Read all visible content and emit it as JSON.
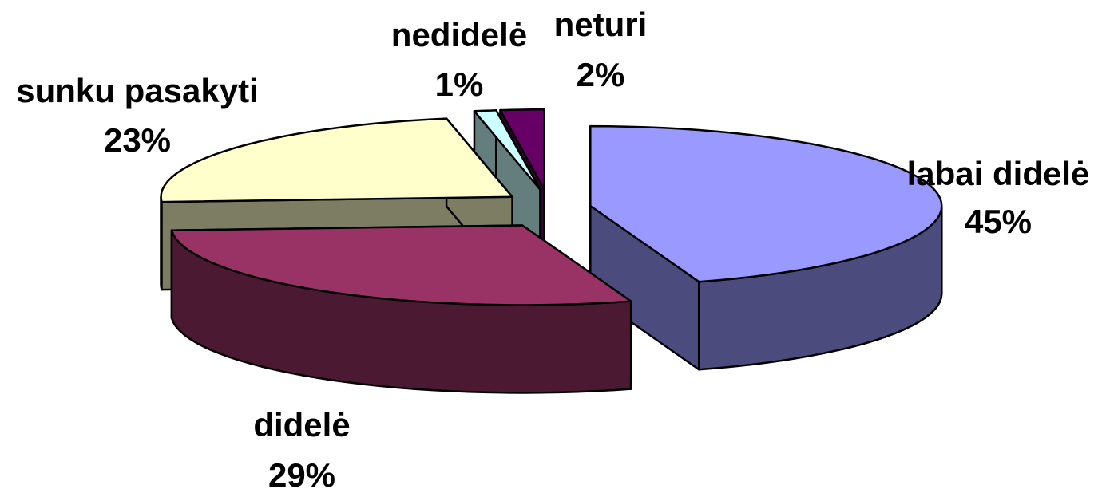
{
  "chart_data": {
    "type": "pie",
    "title": "",
    "three_d": true,
    "exploded": true,
    "legend": "none",
    "slices": [
      {
        "label": "labai didelė",
        "value": 45,
        "pct_text": "45%",
        "color": "#9999FF",
        "side_color": "#4B4B7D"
      },
      {
        "label": "didelė",
        "value": 29,
        "pct_text": "29%",
        "color": "#993366",
        "side_color": "#4B1932"
      },
      {
        "label": "sunku pasakyti",
        "value": 23,
        "pct_text": "23%",
        "color": "#FFFFCC",
        "side_color": "#7D7D64"
      },
      {
        "label": "nedidelė",
        "value": 1,
        "pct_text": "1%",
        "color": "#CCFFFF",
        "side_color": "#647D7D"
      },
      {
        "label": "neturi",
        "value": 2,
        "pct_text": "2%",
        "color": "#660066",
        "side_color": "#320032"
      }
    ]
  }
}
